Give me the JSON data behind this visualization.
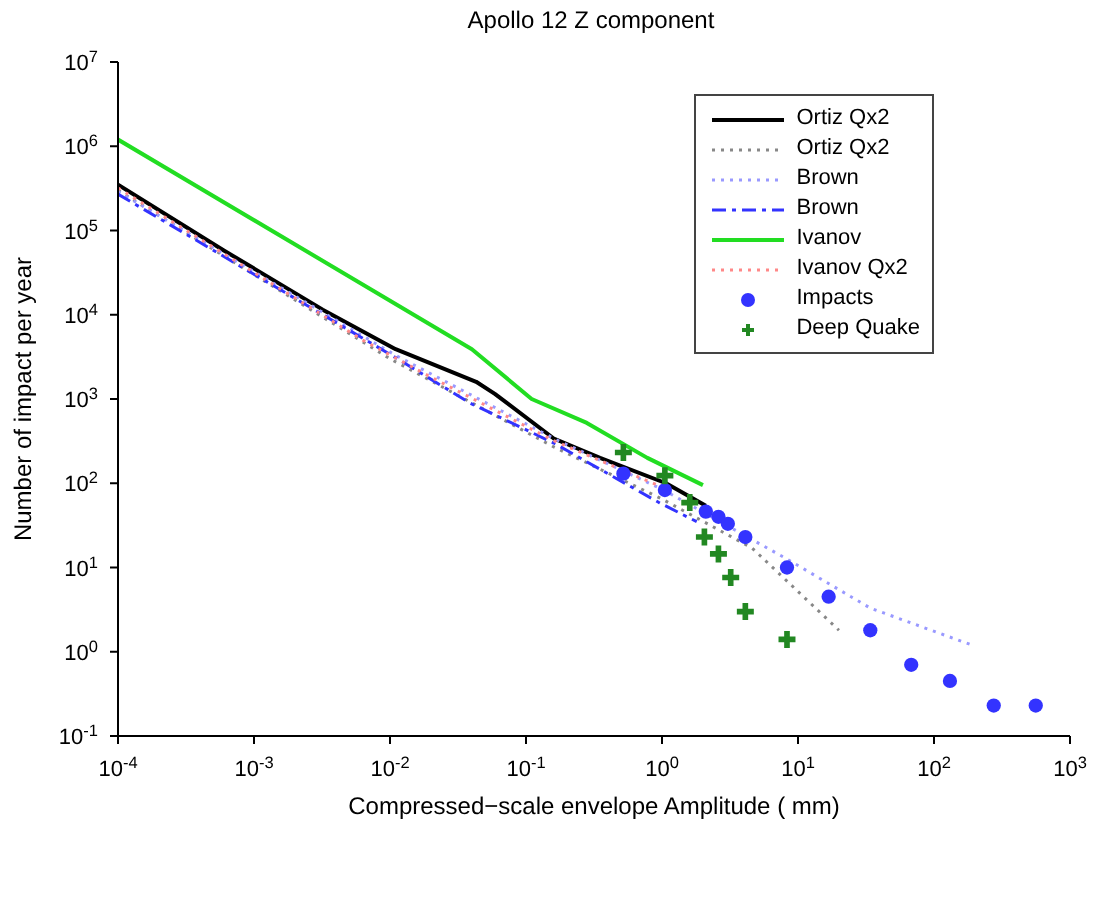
{
  "chart_data": {
    "type": "line",
    "title": "Apollo 12 Z component",
    "xlabel": "Compressed−scale envelope Amplitude ( mm)",
    "ylabel": "Number of impact per year",
    "log": "xy",
    "legend": "top right",
    "xlim": [
      0.0001,
      1000
    ],
    "ylim": [
      0.1,
      10000000
    ],
    "xticks": [
      {
        "value": 0.0001,
        "label": "10$^{-4}$"
      },
      {
        "value": 0.001,
        "label": "10$^{-3}$"
      },
      {
        "value": 0.01,
        "label": "10$^{-2}$"
      },
      {
        "value": 0.1,
        "label": "10$^{-1}$"
      },
      {
        "value": 1,
        "label": "10$^{0}$"
      },
      {
        "value": 10,
        "label": "10$^{1}$"
      },
      {
        "value": 100,
        "label": "10$^{2}$"
      },
      {
        "value": 1000,
        "label": "10$^{3}$"
      }
    ],
    "yticks": [
      {
        "value": 0.1,
        "label": "10$^{-1}$"
      },
      {
        "value": 1,
        "label": "10$^{0}$"
      },
      {
        "value": 10,
        "label": "10$^{1}$"
      },
      {
        "value": 100,
        "label": "10$^{2}$"
      },
      {
        "value": 1000,
        "label": "10$^{3}$"
      },
      {
        "value": 10000,
        "label": "10$^{4}$"
      },
      {
        "value": 100000,
        "label": "10$^{5}$"
      },
      {
        "value": 1000000,
        "label": "10$^{6}$"
      },
      {
        "value": 10000000,
        "label": "10$^{7}$"
      }
    ],
    "series": [
      {
        "name": "Ortiz Qx2",
        "color": "#000000",
        "line_style": "solid",
        "marker": "none",
        "x": [
          0.0001,
          0.0006,
          0.0032,
          0.011,
          0.043,
          0.059,
          0.16,
          0.35,
          1.07,
          2.1
        ],
        "values": [
          350000,
          58000,
          11500,
          3900,
          1600,
          1150,
          340,
          200,
          100,
          54
        ]
      },
      {
        "name": "Ortiz Qx2",
        "color": "#888888",
        "line_style": "dotted",
        "marker": "none",
        "x": [
          0.0001,
          0.01,
          0.16,
          1.0,
          4.6,
          20
        ],
        "values": [
          300000,
          3000,
          270,
          65,
          17,
          1.8
        ]
      },
      {
        "name": "Brown",
        "color": "#9999ff",
        "line_style": "dotted",
        "marker": "none",
        "x": [
          0.0001,
          0.011,
          0.16,
          1.0,
          8.3,
          34,
          190
        ],
        "values": [
          290000,
          3300,
          340,
          85,
          12.6,
          3.3,
          1.2
        ]
      },
      {
        "name": "Brown",
        "color": "#3333ff",
        "line_style": "dashed",
        "marker": "none",
        "x": [
          0.0001,
          0.011,
          0.038,
          0.16,
          0.95,
          1.8
        ],
        "values": [
          270000,
          3100,
          910,
          300,
          59,
          35
        ]
      },
      {
        "name": "Ivanov",
        "color": "#22dd22",
        "line_style": "solid",
        "marker": "none",
        "x": [
          0.0001,
          0.04,
          0.11,
          0.28,
          0.78,
          2.0
        ],
        "values": [
          1200000,
          3900,
          1000,
          520,
          200,
          95
        ]
      },
      {
        "name": "Ivanov Qx2",
        "color": "#ff8888",
        "line_style": "dotted",
        "marker": "none",
        "x": [
          0.0001,
          0.0063,
          0.019,
          0.16,
          1.0
        ],
        "values": [
          320000,
          5000,
          1900,
          320,
          90
        ]
      },
      {
        "name": "Impacts",
        "type": "scatter",
        "color": "#3333ff",
        "marker": "circle",
        "x": [
          0.52,
          1.05,
          2.1,
          2.6,
          3.05,
          4.1,
          8.3,
          16.8,
          34,
          68,
          131,
          275,
          560
        ],
        "values": [
          130,
          83,
          46,
          40,
          33,
          23,
          10,
          4.5,
          1.8,
          0.7,
          0.45,
          0.23,
          0.23
        ]
      },
      {
        "name": "Deep Quake",
        "type": "scatter",
        "color": "#228822",
        "marker": "cross",
        "x": [
          0.52,
          1.05,
          1.6,
          2.05,
          2.6,
          3.2,
          4.1,
          8.3
        ],
        "values": [
          232,
          123,
          59,
          23,
          14.5,
          7.6,
          3.0,
          1.4
        ]
      }
    ]
  }
}
